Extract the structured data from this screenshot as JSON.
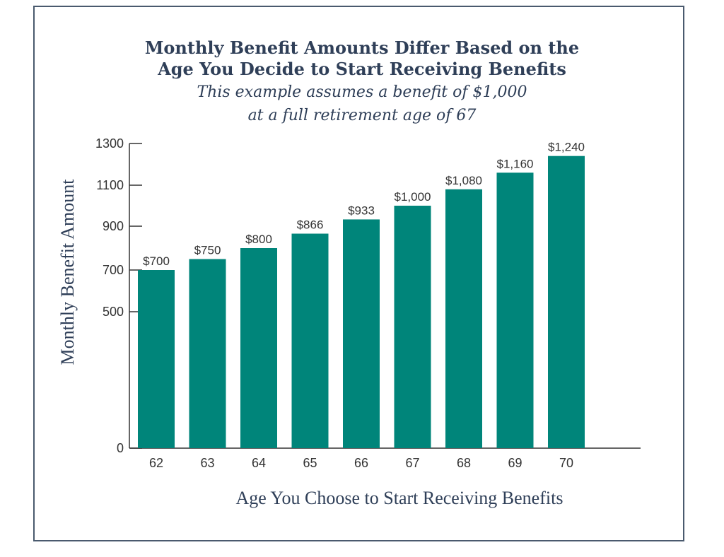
{
  "chart_data": {
    "type": "bar",
    "title_line1": "Monthly Benefit Amounts Differ Based on the",
    "title_line2": "Age You Decide to Start Receiving Benefits",
    "subtitle_line1": "This example assumes a benefit of $1,000",
    "subtitle_line2": "at a full retirement age of 67",
    "xlabel": "Age You Choose to Start Receiving Benefits",
    "ylabel": "Monthly Benefit Amount",
    "categories": [
      "62",
      "63",
      "64",
      "65",
      "66",
      "67",
      "68",
      "69",
      "70"
    ],
    "values": [
      700,
      750,
      800,
      866,
      933,
      1000,
      1080,
      1160,
      1240
    ],
    "value_labels": [
      "$700",
      "$750",
      "$800",
      "$866",
      "$933",
      "$1,000",
      "$1,080",
      "$1,160",
      "$1,240"
    ],
    "yticks": [
      0,
      500,
      700,
      900,
      1100,
      1300
    ],
    "ytick_labels": [
      "0",
      "500",
      "700",
      "900",
      "1100",
      "1300"
    ],
    "bar_color": "#00857a",
    "text_color": "#2f3f58"
  }
}
